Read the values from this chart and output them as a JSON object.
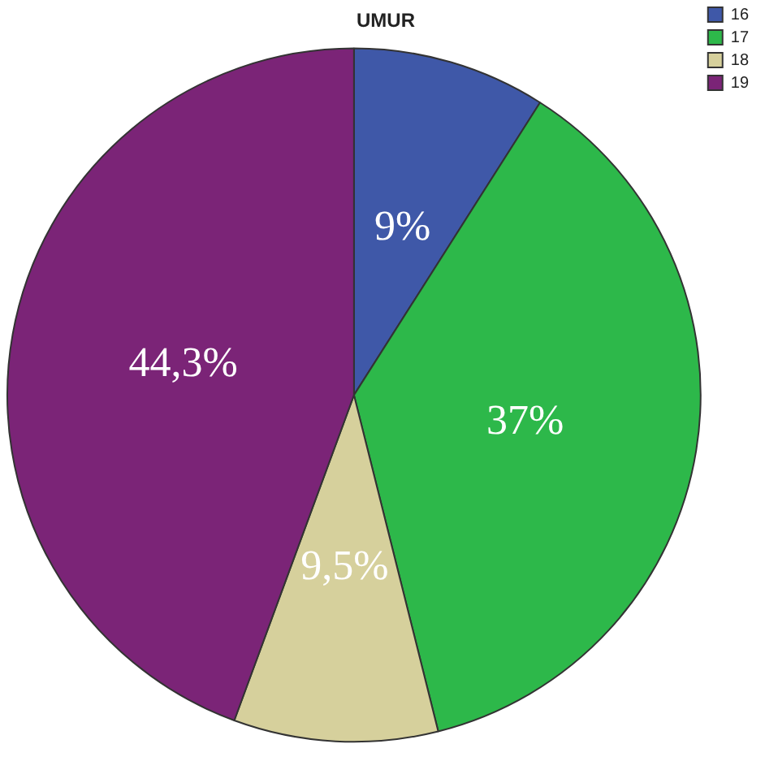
{
  "chart_data": {
    "type": "pie",
    "title": "UMUR",
    "categories": [
      "16",
      "17",
      "18",
      "19"
    ],
    "values": [
      9,
      37,
      9.5,
      44.3
    ],
    "colors": [
      "#3f58a8",
      "#2db84a",
      "#d6d09c",
      "#7b2477"
    ],
    "value_labels": [
      "9%",
      "37%",
      "9,5%",
      "44,3%"
    ],
    "legend": "top right"
  }
}
